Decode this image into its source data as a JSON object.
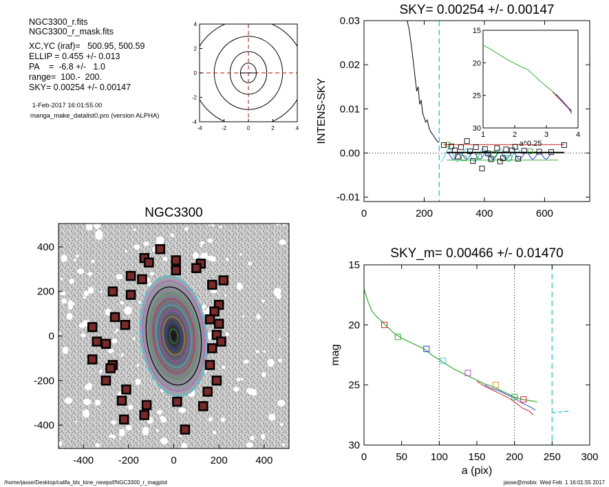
{
  "info": {
    "lines": [
      "NGC3300_r.fits",
      "NGC3300_r_mask.fits",
      "XC,YC (iraf)=   500.95, 500.59",
      "ELLIP = 0.455 +/- 0.013",
      "PA    =  -6.8 +/-   1.0",
      "range=  100.-  200.",
      "SKY= 0.00254 +/- 0.00147"
    ],
    "timestamp": " 1-Feb-2017 16:01:55.00",
    "program": "manga_make_datalist0.pro (version ALPHA)"
  },
  "footer": {
    "left": "/home/jasse/Desktop/califa_blx_kine_newpsf/NGC3300_r_magplot",
    "right": "jasse@mobix  Wed Feb  1 16:01:55 2017"
  },
  "colors": {
    "red_dash": "#c0392b",
    "cyan": "#3cc8d8",
    "green": "#33aa33",
    "red": "#cc2222",
    "blue": "#2244cc",
    "magenta": "#bb44cc",
    "orange": "#dd9922"
  },
  "chart_data": [
    {
      "id": "contour",
      "type": "contour",
      "title": "",
      "xlim": [
        -4,
        4
      ],
      "ylim": [
        -4,
        4
      ],
      "xticks": [
        -4,
        -2,
        0,
        2,
        4
      ],
      "yticks": [
        -4,
        -2,
        0,
        2,
        4
      ],
      "contours": [
        {
          "rx": 0.65,
          "ry": 0.8
        },
        {
          "rx": 1.5,
          "ry": 1.75
        },
        {
          "rx": 2.8,
          "ry": 3.0
        },
        {
          "rx": 4.6,
          "ry": 4.4
        }
      ]
    },
    {
      "id": "sky",
      "type": "scatter",
      "title": "SKY= 0.00254 +/- 0.00147",
      "xlabel": "",
      "ylabel": "INTENS-SKY",
      "xlim": [
        0,
        750
      ],
      "ylim": [
        -0.011,
        0.03
      ],
      "xticks": [
        0,
        200,
        400,
        600
      ],
      "yticks": [
        -0.01,
        0.0,
        0.01,
        0.02,
        0.03
      ],
      "ytick_labels": [
        "-0.01",
        "0.00",
        "0.01",
        "0.02",
        "0.03"
      ],
      "vline": 250,
      "profile": [
        [
          140,
          0.031
        ],
        [
          150,
          0.028
        ],
        [
          158,
          0.024
        ],
        [
          165,
          0.02
        ],
        [
          170,
          0.017
        ],
        [
          175,
          0.014
        ],
        [
          180,
          0.015
        ],
        [
          185,
          0.011
        ],
        [
          190,
          0.012
        ],
        [
          195,
          0.009
        ],
        [
          200,
          0.008
        ],
        [
          205,
          0.007
        ],
        [
          210,
          0.0075
        ],
        [
          215,
          0.006
        ],
        [
          220,
          0.005
        ],
        [
          225,
          0.0045
        ],
        [
          230,
          0.004
        ],
        [
          235,
          0.0035
        ],
        [
          240,
          0.003
        ],
        [
          245,
          0.0025
        ],
        [
          250,
          0.0025
        ]
      ],
      "points": [
        [
          265,
          0.0018
        ],
        [
          278,
          0.0019
        ],
        [
          290,
          0.0015
        ],
        [
          302,
          0.0006
        ],
        [
          312,
          -0.0008
        ],
        [
          322,
          0.0013
        ],
        [
          332,
          -0.0012
        ],
        [
          342,
          0.0027
        ],
        [
          352,
          0.0004
        ],
        [
          362,
          -0.0018
        ],
        [
          372,
          0.0013
        ],
        [
          382,
          -0.0008
        ],
        [
          392,
          -0.0035
        ],
        [
          402,
          0.0009
        ],
        [
          412,
          -0.0001
        ],
        [
          422,
          -0.0014
        ],
        [
          432,
          -0.0002
        ],
        [
          442,
          0.0011
        ],
        [
          452,
          -0.0019
        ],
        [
          462,
          -0.0012
        ],
        [
          472,
          0.0008
        ],
        [
          482,
          -0.0011
        ],
        [
          492,
          0.0006
        ],
        [
          502,
          0.0014
        ],
        [
          512,
          -0.0013
        ],
        [
          532,
          0.0005
        ],
        [
          552,
          0.0004
        ],
        [
          582,
          0.0003
        ],
        [
          622,
          0.0002
        ],
        [
          665,
          0.0018
        ]
      ],
      "hlines": [
        {
          "color": "red",
          "y": 0.0019,
          "x": [
            265,
            665
          ]
        },
        {
          "color": "black",
          "y": 0.0001,
          "x": [
            275,
            665
          ]
        },
        {
          "color": "green",
          "y": -0.0016,
          "x": [
            275,
            645
          ]
        }
      ],
      "inset": {
        "xlabel": "a^0.25",
        "xlim": [
          1,
          4
        ],
        "ylim": [
          15,
          30
        ],
        "y_inverted": true,
        "xticks": [
          1,
          2,
          3,
          4
        ],
        "yticks": [
          15,
          20,
          25,
          30
        ],
        "green": [
          [
            1.0,
            17.3
          ],
          [
            1.2,
            17.8
          ],
          [
            1.5,
            18.7
          ],
          [
            1.8,
            19.6
          ],
          [
            2.0,
            20.1
          ],
          [
            2.2,
            20.6
          ],
          [
            2.4,
            21.0
          ],
          [
            2.6,
            21.9
          ],
          [
            2.8,
            22.8
          ],
          [
            3.0,
            23.6
          ],
          [
            3.2,
            24.4
          ],
          [
            3.4,
            25.4
          ],
          [
            3.6,
            26.4
          ],
          [
            3.7,
            26.9
          ],
          [
            3.8,
            27.3
          ]
        ],
        "red": [
          [
            3.2,
            24.5
          ],
          [
            3.4,
            25.5
          ],
          [
            3.6,
            26.5
          ],
          [
            3.7,
            27.0
          ],
          [
            3.8,
            27.8
          ]
        ],
        "blue": [
          [
            3.3,
            24.8
          ],
          [
            3.5,
            25.8
          ],
          [
            3.7,
            26.9
          ],
          [
            3.8,
            27.5
          ]
        ]
      }
    },
    {
      "id": "image",
      "type": "image",
      "title": "NGC3300",
      "xlim": [
        -510,
        510
      ],
      "ylim": [
        -505,
        505
      ],
      "xticks": [
        -400,
        -200,
        0,
        200,
        400
      ],
      "yticks": [
        -400,
        -200,
        0,
        200,
        400
      ],
      "ellipse_fit": {
        "a": 270,
        "b": 147,
        "pa_deg": -6.8
      },
      "squares": [
        [
          -60,
          390
        ],
        [
          -130,
          350
        ],
        [
          -110,
          330
        ],
        [
          10,
          340
        ],
        [
          120,
          325
        ],
        [
          100,
          305
        ],
        [
          10,
          295
        ],
        [
          220,
          250
        ],
        [
          -190,
          270
        ],
        [
          -140,
          255
        ],
        [
          170,
          230
        ],
        [
          -270,
          200
        ],
        [
          200,
          140
        ],
        [
          -190,
          185
        ],
        [
          180,
          110
        ],
        [
          -260,
          85
        ],
        [
          160,
          75
        ],
        [
          -215,
          50
        ],
        [
          200,
          55
        ],
        [
          -360,
          40
        ],
        [
          190,
          5
        ],
        [
          -340,
          -25
        ],
        [
          210,
          -25
        ],
        [
          -300,
          -35
        ],
        [
          170,
          -55
        ],
        [
          -360,
          -105
        ],
        [
          -270,
          -130
        ],
        [
          -280,
          -145
        ],
        [
          160,
          -130
        ],
        [
          -300,
          -200
        ],
        [
          190,
          -200
        ],
        [
          -210,
          -240
        ],
        [
          150,
          -250
        ],
        [
          -230,
          -290
        ],
        [
          15,
          -295
        ],
        [
          -120,
          -310
        ],
        [
          130,
          -315
        ],
        [
          -130,
          -355
        ],
        [
          -220,
          -375
        ],
        [
          50,
          -420
        ]
      ]
    },
    {
      "id": "mag",
      "type": "line",
      "title": "SKY_m=  0.00466 +/- 0.01470",
      "xlabel": "a (pix)",
      "ylabel": "mag",
      "xlim": [
        0,
        300
      ],
      "ylim": [
        15,
        30
      ],
      "y_inverted": true,
      "xticks": [
        0,
        50,
        100,
        150,
        200,
        250,
        300
      ],
      "yticks": [
        15,
        20,
        25,
        30
      ],
      "vlines_dotted": [
        100,
        200
      ],
      "vline_cyan": 250,
      "sky_step": [
        [
          250,
          27.3
        ],
        [
          255,
          27.3
        ],
        [
          265,
          27.2
        ],
        [
          272,
          27.2
        ]
      ],
      "green": [
        [
          0,
          17.0
        ],
        [
          5,
          18.0
        ],
        [
          10,
          18.8
        ],
        [
          15,
          19.2
        ],
        [
          20,
          19.5
        ],
        [
          30,
          20.1
        ],
        [
          40,
          20.7
        ],
        [
          50,
          21.1
        ],
        [
          60,
          21.4
        ],
        [
          70,
          21.7
        ],
        [
          80,
          22.0
        ],
        [
          90,
          22.5
        ],
        [
          100,
          22.9
        ],
        [
          110,
          23.3
        ],
        [
          120,
          23.7
        ],
        [
          130,
          24.0
        ],
        [
          140,
          24.3
        ],
        [
          150,
          24.6
        ],
        [
          160,
          24.9
        ],
        [
          170,
          25.1
        ],
        [
          180,
          25.4
        ],
        [
          190,
          25.7
        ],
        [
          200,
          26.0
        ],
        [
          210,
          26.2
        ],
        [
          220,
          26.3
        ],
        [
          230,
          26.4
        ]
      ],
      "red": [
        [
          150,
          24.7
        ],
        [
          160,
          25.1
        ],
        [
          170,
          25.4
        ],
        [
          180,
          25.7
        ],
        [
          190,
          26.0
        ],
        [
          200,
          26.4
        ],
        [
          210,
          26.9
        ],
        [
          220,
          27.2
        ],
        [
          225,
          27.5
        ]
      ],
      "blue": [
        [
          160,
          25.0
        ],
        [
          170,
          25.3
        ],
        [
          180,
          25.5
        ],
        [
          190,
          25.8
        ],
        [
          200,
          26.1
        ],
        [
          210,
          26.5
        ],
        [
          220,
          26.8
        ],
        [
          228,
          27.1
        ]
      ],
      "markers": [
        {
          "x": 27,
          "y": 20.0,
          "color": "red"
        },
        {
          "x": 45,
          "y": 21.0,
          "color": "green"
        },
        {
          "x": 83,
          "y": 22.0,
          "color": "blue"
        },
        {
          "x": 105,
          "y": 23.0,
          "color": "cyan"
        },
        {
          "x": 138,
          "y": 24.0,
          "color": "magenta"
        },
        {
          "x": 175,
          "y": 25.0,
          "color": "orange"
        },
        {
          "x": 200,
          "y": 26.0,
          "color": "green"
        },
        {
          "x": 212,
          "y": 26.2,
          "color": "red"
        }
      ]
    }
  ]
}
